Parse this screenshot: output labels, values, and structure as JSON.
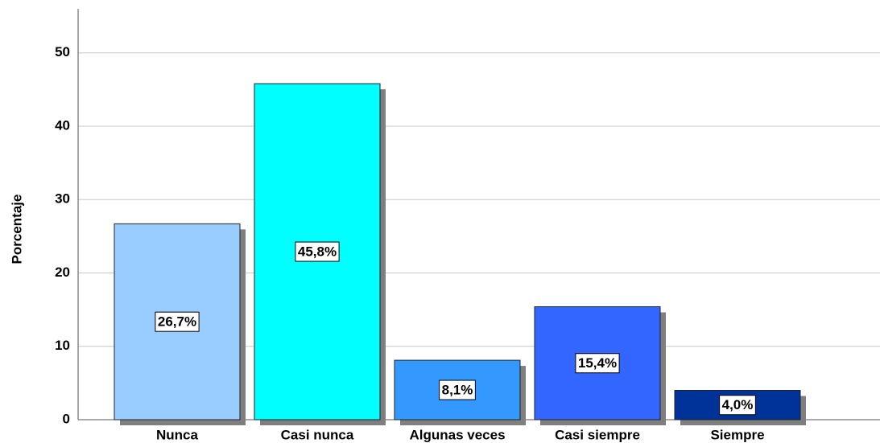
{
  "chart_data": {
    "type": "bar",
    "y_label": "Porcentaje",
    "categories": [
      "Nunca",
      "Casi nunca",
      "Algunas veces",
      "Casi siempre",
      "Siempre"
    ],
    "values": [
      26.7,
      45.8,
      8.1,
      15.4,
      4.0
    ],
    "value_labels": [
      "26,7%",
      "45,8%",
      "8,1%",
      "15,4%",
      "4,0%"
    ],
    "colors": [
      "#99ccff",
      "#00ffff",
      "#3399ff",
      "#3366ff",
      "#003399"
    ],
    "ylim": [
      0,
      56
    ],
    "yticks": [
      0,
      10,
      20,
      30,
      40,
      50
    ],
    "grid": true
  }
}
